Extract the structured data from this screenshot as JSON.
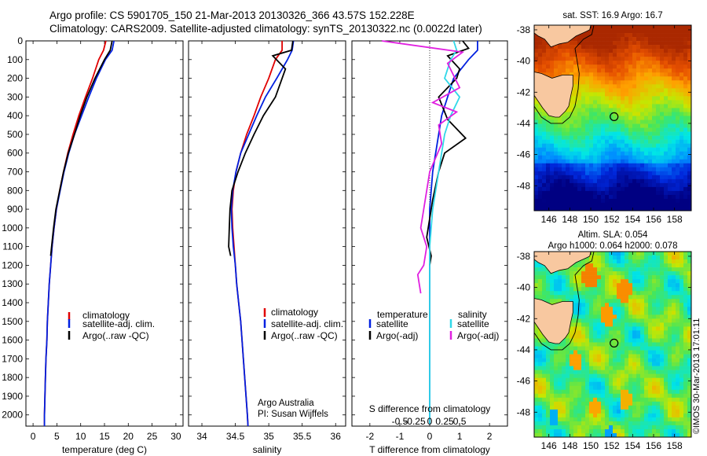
{
  "header": {
    "line1": "Argo profile: CS 5901705_150 21-Mar-2013 20130326_366 43.57S 152.228E",
    "line2": "Climatology: CARS2009. Satellite-adjusted climatology: synTS_20130322.nc (0.0022d later)"
  },
  "colors": {
    "climatology": "#e00000",
    "satellite": "#0020e0",
    "argo": "#000000",
    "sat_t": "#30d8e8",
    "argo_s": "#e020e0"
  },
  "depth_axis": {
    "ticks": [
      0,
      100,
      200,
      300,
      400,
      500,
      600,
      700,
      800,
      900,
      1000,
      1100,
      1200,
      1300,
      1400,
      1500,
      1600,
      1700,
      1800,
      1900,
      2000
    ],
    "range": [
      0,
      2060
    ]
  },
  "panels": {
    "temperature": {
      "xlabel": "temperature (deg C)",
      "xlim": [
        -1.5,
        31.5
      ],
      "xticks": [
        0,
        5,
        10,
        15,
        20,
        25,
        30
      ],
      "legend": [
        "climatology",
        "satellite-adj. clim.",
        "Argo(..raw -QC)"
      ]
    },
    "salinity": {
      "xlabel": "salinity",
      "xlim": [
        33.8,
        36.15
      ],
      "xticks": [
        34,
        34.5,
        35,
        35.5,
        36
      ],
      "legend": [
        "climatology",
        "satellite-adj. clim.",
        "Argo(..raw -QC)"
      ],
      "note1": "Argo Australia",
      "note2": "PI: Susan Wijffels"
    },
    "difference": {
      "xlabel": "T difference from climatology",
      "top_label": "S difference from climatology",
      "xlim": [
        -2.6,
        2.6
      ],
      "xticks": [
        -2,
        -1,
        0,
        1,
        2
      ],
      "s_ticks": [
        "-0.5",
        "-0.25",
        "0",
        "0.25",
        "0.5"
      ],
      "legend_t_title": "temperature",
      "legend_s_title": "salinity",
      "legend_t": [
        "satellite",
        "Argo(-adj)"
      ],
      "legend_s": [
        "satellite",
        "Argo(-adj)"
      ]
    }
  },
  "chart_data": [
    {
      "type": "line",
      "ylabel": "",
      "xlabel": "temperature (deg C)",
      "series": [
        {
          "name": "climatology",
          "x": [
            15.3,
            14.8,
            13.8,
            12.5,
            11.0,
            9.6,
            8.4,
            7.3,
            6.4,
            5.6,
            4.9,
            4.4,
            4.0,
            3.7,
            3.4,
            3.2,
            3.0,
            2.9,
            2.7,
            2.6,
            2.5,
            2.4,
            2.4
          ],
          "depth": [
            0,
            50,
            100,
            200,
            300,
            400,
            500,
            600,
            700,
            800,
            900,
            1000,
            1100,
            1200,
            1300,
            1400,
            1500,
            1600,
            1700,
            1800,
            1900,
            2000,
            2060
          ]
        },
        {
          "name": "satellite-adj. clim.",
          "x": [
            17.0,
            16.6,
            15.2,
            13.3,
            11.7,
            10.2,
            8.7,
            7.5,
            6.5,
            5.7,
            4.9,
            4.4,
            4.0,
            3.7,
            3.4,
            3.2,
            3.0,
            2.9,
            2.7,
            2.6,
            2.5,
            2.4,
            2.4
          ],
          "depth": [
            0,
            50,
            100,
            200,
            300,
            400,
            500,
            600,
            700,
            800,
            900,
            1000,
            1100,
            1200,
            1300,
            1400,
            1500,
            1600,
            1700,
            1800,
            1900,
            2000,
            2060
          ]
        },
        {
          "name": "Argo(..raw -QC)",
          "x": [
            16.6,
            16.2,
            15.0,
            13.0,
            11.3,
            9.9,
            8.7,
            7.4,
            6.4,
            5.6,
            4.8,
            4.3,
            3.9,
            3.7
          ],
          "depth": [
            0,
            50,
            100,
            200,
            300,
            400,
            500,
            600,
            700,
            800,
            900,
            1000,
            1100,
            1150
          ]
        }
      ]
    },
    {
      "type": "line",
      "xlabel": "salinity",
      "series": [
        {
          "name": "climatology",
          "x": [
            35.2,
            35.2,
            35.1,
            35.0,
            34.88,
            34.78,
            34.67,
            34.58,
            34.51,
            34.47,
            34.45,
            34.46,
            34.48,
            34.5,
            34.52,
            34.55,
            34.58,
            34.6,
            34.62,
            34.64,
            34.66,
            34.68,
            34.69
          ],
          "depth": [
            0,
            50,
            100,
            200,
            300,
            400,
            500,
            600,
            700,
            800,
            900,
            1000,
            1100,
            1200,
            1300,
            1400,
            1500,
            1600,
            1700,
            1800,
            1900,
            2000,
            2060
          ]
        },
        {
          "name": "satellite-adj. clim.",
          "x": [
            35.37,
            35.35,
            35.28,
            35.12,
            34.95,
            34.82,
            34.7,
            34.58,
            34.51,
            34.46,
            34.44,
            34.45,
            34.47,
            34.5,
            34.52,
            34.55,
            34.58,
            34.6,
            34.62,
            34.64,
            34.66,
            34.68,
            34.69
          ],
          "depth": [
            0,
            50,
            100,
            200,
            300,
            400,
            500,
            600,
            700,
            800,
            900,
            1000,
            1100,
            1200,
            1300,
            1400,
            1500,
            1600,
            1700,
            1800,
            1900,
            2000,
            2060
          ]
        },
        {
          "name": "Argo(..raw -QC)",
          "x": [
            35.36,
            35.34,
            35.06,
            35.25,
            35.1,
            34.92,
            34.78,
            34.65,
            34.54,
            34.45,
            34.42,
            34.41,
            34.4,
            34.43
          ],
          "depth": [
            0,
            50,
            80,
            150,
            300,
            400,
            500,
            600,
            700,
            800,
            900,
            1000,
            1100,
            1150
          ]
        }
      ]
    },
    {
      "type": "line",
      "xlabel": "T difference from climatology",
      "series": [
        {
          "name": "temperature satellite",
          "x": [
            1.6,
            1.6,
            1.3,
            0.8,
            0.6,
            0.4,
            0.3,
            0.2,
            0.1,
            0.05,
            0.0,
            0.0,
            0.0,
            0.0,
            0.0,
            0.0,
            0.0,
            0.0,
            0.0,
            0.0,
            0.0,
            0.0
          ],
          "depth": [
            0,
            50,
            100,
            200,
            300,
            400,
            500,
            600,
            700,
            800,
            900,
            1000,
            1100,
            1200,
            1300,
            1400,
            1500,
            1600,
            1700,
            1800,
            1900,
            2050
          ]
        },
        {
          "name": "temperature Argo(-adj)",
          "x": [
            1.1,
            1.3,
            0.6,
            1.0,
            0.9,
            0.3,
            0.6,
            1.2,
            0.5,
            0.3,
            0.1,
            0.0,
            -0.1,
            0.05,
            0.0
          ],
          "depth": [
            0,
            40,
            80,
            150,
            200,
            300,
            420,
            520,
            600,
            700,
            850,
            950,
            1050,
            1150,
            1200
          ]
        },
        {
          "name": "salinity satellite",
          "x": [
            0.8,
            0.9,
            0.7,
            0.5,
            1.0,
            0.7,
            0.5,
            0.4,
            0.3,
            0.2,
            0.1,
            0.05,
            0.0,
            0.0,
            0.0,
            0.0
          ],
          "depth": [
            0,
            50,
            100,
            200,
            300,
            400,
            500,
            600,
            700,
            800,
            900,
            1000,
            1100,
            1200,
            1300,
            2050
          ]
        },
        {
          "name": "salinity Argo(-adj)",
          "x": [
            -1.6,
            1.1,
            0.6,
            1.0,
            0.1,
            0.9,
            0.3,
            0.4,
            0.0,
            -0.1,
            -0.2,
            -0.3,
            -0.1,
            -0.2,
            -0.4,
            -0.3
          ],
          "depth": [
            0,
            60,
            120,
            250,
            330,
            380,
            450,
            550,
            700,
            800,
            900,
            1000,
            1100,
            1200,
            1250,
            1350
          ]
        }
      ]
    },
    {
      "type": "heatmap",
      "title": "sat. SST: 16.9 Argo: 16.7",
      "x_ticks": [
        "146",
        "148",
        "150",
        "152",
        "154",
        "156",
        "158"
      ],
      "y_ticks": [
        "-38",
        "-40",
        "-42",
        "-44",
        "-46",
        "-48"
      ],
      "xlim": [
        144.6,
        159.6
      ],
      "ylim": [
        -49.6,
        -37.7
      ],
      "argo_position": [
        152.228,
        -43.57
      ]
    },
    {
      "type": "heatmap",
      "title_line1": "Altim. SLA: 0.054",
      "title_line2": "Argo h1000: 0.064 h2000: 0.078",
      "x_ticks": [
        "146",
        "148",
        "150",
        "152",
        "154",
        "156",
        "158"
      ],
      "y_ticks": [
        "-38",
        "-40",
        "-42",
        "-44",
        "-46",
        "-48"
      ],
      "xlim": [
        144.6,
        159.6
      ],
      "ylim": [
        -49.6,
        -37.7
      ],
      "argo_position": [
        152.228,
        -43.57
      ]
    }
  ],
  "side_label": "©IMOS 30-Mar-2013 17:01:11"
}
